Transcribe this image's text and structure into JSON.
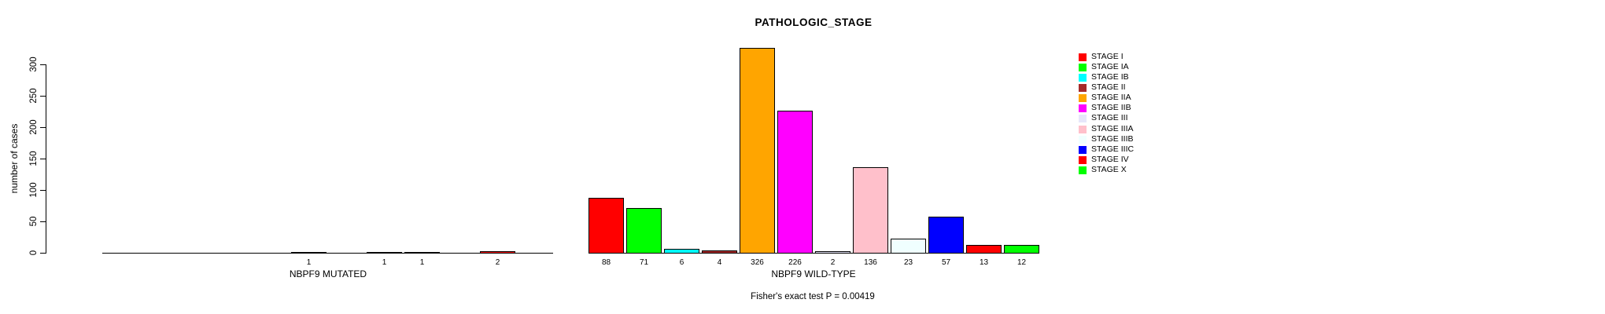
{
  "title": "PATHOLOGIC_STAGE",
  "chart_data": {
    "type": "bar",
    "title": "PATHOLOGIC_STAGE",
    "xlabel": "",
    "ylabel": "number of cases",
    "ylim": [
      0,
      300
    ],
    "yticks": [
      0,
      50,
      100,
      150,
      200,
      250,
      300
    ],
    "grid": false,
    "legend_position": "right",
    "caption": "Fisher's exact test P = 0.00419",
    "value_labels_shown": true,
    "stages": [
      {
        "label": "STAGE I",
        "color": "#FF0000"
      },
      {
        "label": "STAGE IA",
        "color": "#00FF00"
      },
      {
        "label": "STAGE IB",
        "color": "#00FFFF"
      },
      {
        "label": "STAGE II",
        "color": "#A52A2A"
      },
      {
        "label": "STAGE IIA",
        "color": "#FFA500"
      },
      {
        "label": "STAGE IIB",
        "color": "#FF00FF"
      },
      {
        "label": "STAGE III",
        "color": "#E6E6FA"
      },
      {
        "label": "STAGE IIIA",
        "color": "#FFC0CB"
      },
      {
        "label": "STAGE IIIB",
        "color": "#F0FFFF"
      },
      {
        "label": "STAGE IIIC",
        "color": "#0000FF"
      },
      {
        "label": "STAGE IV",
        "color": "#FF0000"
      },
      {
        "label": "STAGE X",
        "color": "#00FF00"
      }
    ],
    "groups": [
      {
        "label": "NBPF9 MUTATED",
        "values": [
          0,
          0,
          0,
          0,
          0,
          1,
          0,
          1,
          1,
          0,
          2,
          0
        ]
      },
      {
        "label": "NBPF9 WILD-TYPE",
        "values": [
          88,
          71,
          6,
          4,
          326,
          226,
          2,
          136,
          23,
          57,
          13,
          12
        ]
      }
    ]
  }
}
